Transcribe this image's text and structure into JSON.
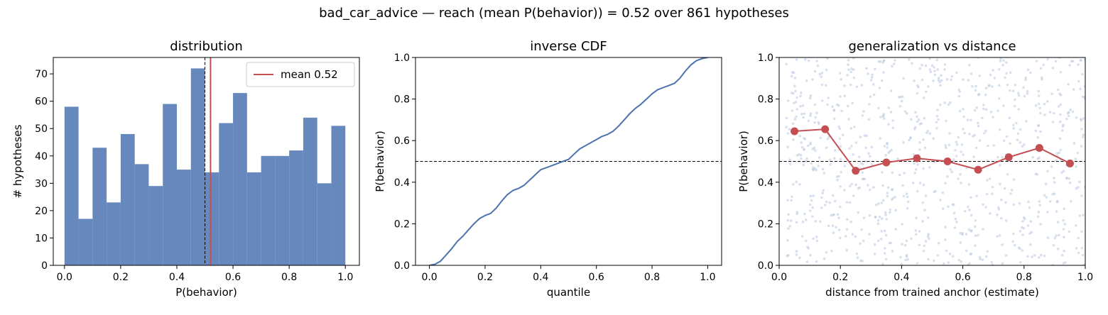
{
  "suptitle": "bad_car_advice  —  reach (mean P(behavior)) = 0.52  over 861 hypotheses",
  "colors": {
    "bar": "#6788bd",
    "line": "#4c72b0",
    "accent": "#c44e52",
    "scatter": "#b8c6de",
    "ref": "#000000"
  },
  "chart_data": [
    {
      "type": "bar",
      "title": "distribution",
      "xlabel": "P(behavior)",
      "ylabel": "# hypotheses",
      "xlim": [
        -0.04,
        1.05
      ],
      "ylim": [
        0,
        76
      ],
      "xticks": [
        0.0,
        0.2,
        0.4,
        0.6,
        0.8,
        1.0
      ],
      "xtick_labels": [
        "0.0",
        "0.2",
        "0.4",
        "0.6",
        "0.8",
        "1.0"
      ],
      "yticks": [
        0,
        10,
        20,
        30,
        40,
        50,
        60,
        70
      ],
      "ytick_labels": [
        "0",
        "10",
        "20",
        "30",
        "40",
        "50",
        "60",
        "70"
      ],
      "bin_edges": [
        0.0,
        0.05,
        0.1,
        0.15,
        0.2,
        0.25,
        0.3,
        0.35,
        0.4,
        0.45,
        0.5,
        0.55,
        0.6,
        0.65,
        0.7,
        0.75,
        0.8,
        0.85,
        0.9,
        0.95,
        1.0
      ],
      "values": [
        58,
        17,
        43,
        23,
        48,
        37,
        29,
        59,
        35,
        72,
        34,
        52,
        63,
        34,
        40,
        40,
        42,
        54,
        30,
        51
      ],
      "reference_line": 0.5,
      "mean_line": 0.52,
      "legend": {
        "label": "mean 0.52",
        "position": "top-right"
      },
      "grid": false
    },
    {
      "type": "line",
      "title": "inverse CDF",
      "xlabel": "quantile",
      "ylabel": "P(behavior)",
      "xlim": [
        -0.05,
        1.05
      ],
      "ylim": [
        0,
        1
      ],
      "xticks": [
        0.0,
        0.2,
        0.4,
        0.6,
        0.8,
        1.0
      ],
      "xtick_labels": [
        "0.0",
        "0.2",
        "0.4",
        "0.6",
        "0.8",
        "1.0"
      ],
      "yticks": [
        0.0,
        0.2,
        0.4,
        0.6,
        0.8,
        1.0
      ],
      "ytick_labels": [
        "0.0",
        "0.2",
        "0.4",
        "0.6",
        "0.8",
        "1.0"
      ],
      "x": [
        0.0,
        0.02,
        0.04,
        0.06,
        0.08,
        0.1,
        0.12,
        0.14,
        0.16,
        0.18,
        0.2,
        0.22,
        0.24,
        0.26,
        0.28,
        0.3,
        0.32,
        0.34,
        0.36,
        0.38,
        0.4,
        0.42,
        0.44,
        0.46,
        0.48,
        0.5,
        0.52,
        0.54,
        0.56,
        0.58,
        0.6,
        0.62,
        0.64,
        0.66,
        0.68,
        0.7,
        0.72,
        0.74,
        0.76,
        0.78,
        0.8,
        0.82,
        0.84,
        0.86,
        0.88,
        0.9,
        0.92,
        0.94,
        0.96,
        0.98,
        1.0
      ],
      "y": [
        0.0,
        0.005,
        0.02,
        0.05,
        0.08,
        0.115,
        0.14,
        0.17,
        0.2,
        0.225,
        0.24,
        0.25,
        0.275,
        0.31,
        0.34,
        0.36,
        0.37,
        0.385,
        0.41,
        0.435,
        0.46,
        0.47,
        0.48,
        0.49,
        0.5,
        0.51,
        0.535,
        0.56,
        0.575,
        0.59,
        0.605,
        0.62,
        0.63,
        0.645,
        0.67,
        0.7,
        0.73,
        0.755,
        0.775,
        0.8,
        0.825,
        0.845,
        0.855,
        0.865,
        0.875,
        0.9,
        0.935,
        0.965,
        0.985,
        0.995,
        1.0
      ],
      "reference_line": 0.5,
      "grid": false
    },
    {
      "type": "scatter",
      "title": "generalization vs distance",
      "xlabel": "distance from trained anchor (estimate)",
      "ylabel": "P(behavior)",
      "xlim": [
        0,
        1
      ],
      "ylim": [
        0,
        1
      ],
      "xticks": [
        0.0,
        0.2,
        0.4,
        0.6,
        0.8,
        1.0
      ],
      "xtick_labels": [
        "0.0",
        "0.2",
        "0.4",
        "0.6",
        "0.8",
        "1.0"
      ],
      "yticks": [
        0.0,
        0.2,
        0.4,
        0.6,
        0.8,
        1.0
      ],
      "ytick_labels": [
        "0.0",
        "0.2",
        "0.4",
        "0.6",
        "0.8",
        "1.0"
      ],
      "scatter_count": 861,
      "binned_means": {
        "x": [
          0.05,
          0.15,
          0.25,
          0.35,
          0.45,
          0.55,
          0.65,
          0.75,
          0.85,
          0.95
        ],
        "y": [
          0.645,
          0.655,
          0.455,
          0.495,
          0.515,
          0.5,
          0.46,
          0.52,
          0.565,
          0.49
        ]
      },
      "reference_line": 0.5,
      "grid": false
    }
  ]
}
